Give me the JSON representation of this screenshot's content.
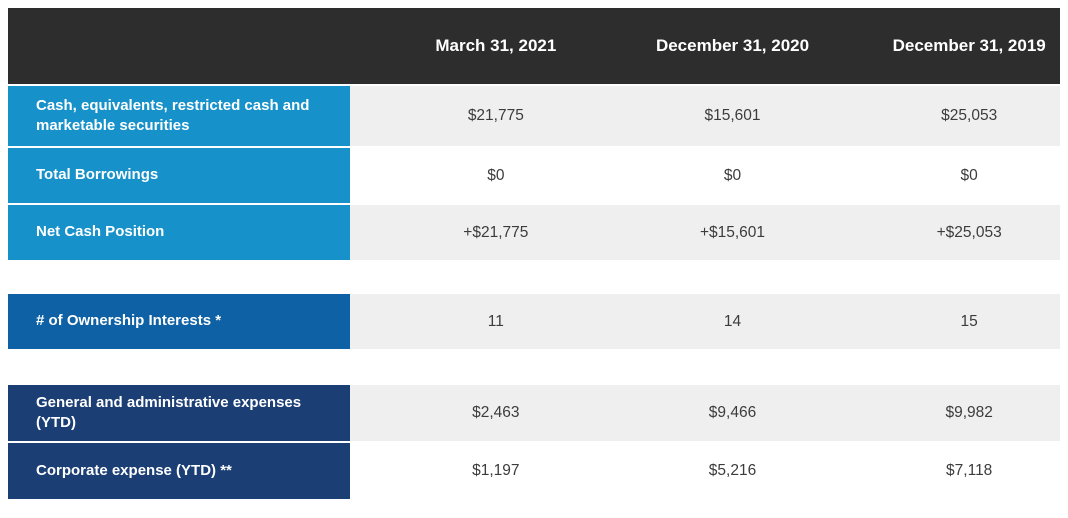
{
  "chart_data": {
    "type": "table",
    "title": "Financial position summary table",
    "columns": [
      "March 31, 2021",
      "December 31, 2020",
      "December 31, 2019"
    ],
    "sections": [
      {
        "name": "cash-position",
        "rows": [
          {
            "label": "Cash, equivalents, restricted cash and marketable securities",
            "values": [
              "$21,775",
              "$15,601",
              "$25,053"
            ]
          },
          {
            "label": "Total Borrowings",
            "values": [
              "$0",
              "$0",
              "$0"
            ]
          },
          {
            "label": "Net Cash Position",
            "values": [
              "+$21,775",
              "+$15,601",
              "+$25,053"
            ]
          }
        ]
      },
      {
        "name": "ownership-interests",
        "rows": [
          {
            "label": "# of Ownership Interests  *",
            "values": [
              "11",
              "14",
              "15"
            ]
          }
        ]
      },
      {
        "name": "expenses",
        "rows": [
          {
            "label": "General and administrative expenses (YTD)",
            "values": [
              "$2,463",
              "$9,466",
              "$9,982"
            ]
          },
          {
            "label": "Corporate expense (YTD) **",
            "values": [
              "$1,197",
              "$5,216",
              "$7,118"
            ]
          }
        ]
      }
    ]
  },
  "colors": {
    "header_bg": "#2d2d2d",
    "section_cash_bg": "#1791c9",
    "section_ownership_bg": "#0e61a4",
    "section_expenses_bg": "#1b3e75",
    "row_gray_bg": "#efefef",
    "row_white_bg": "#ffffff"
  }
}
